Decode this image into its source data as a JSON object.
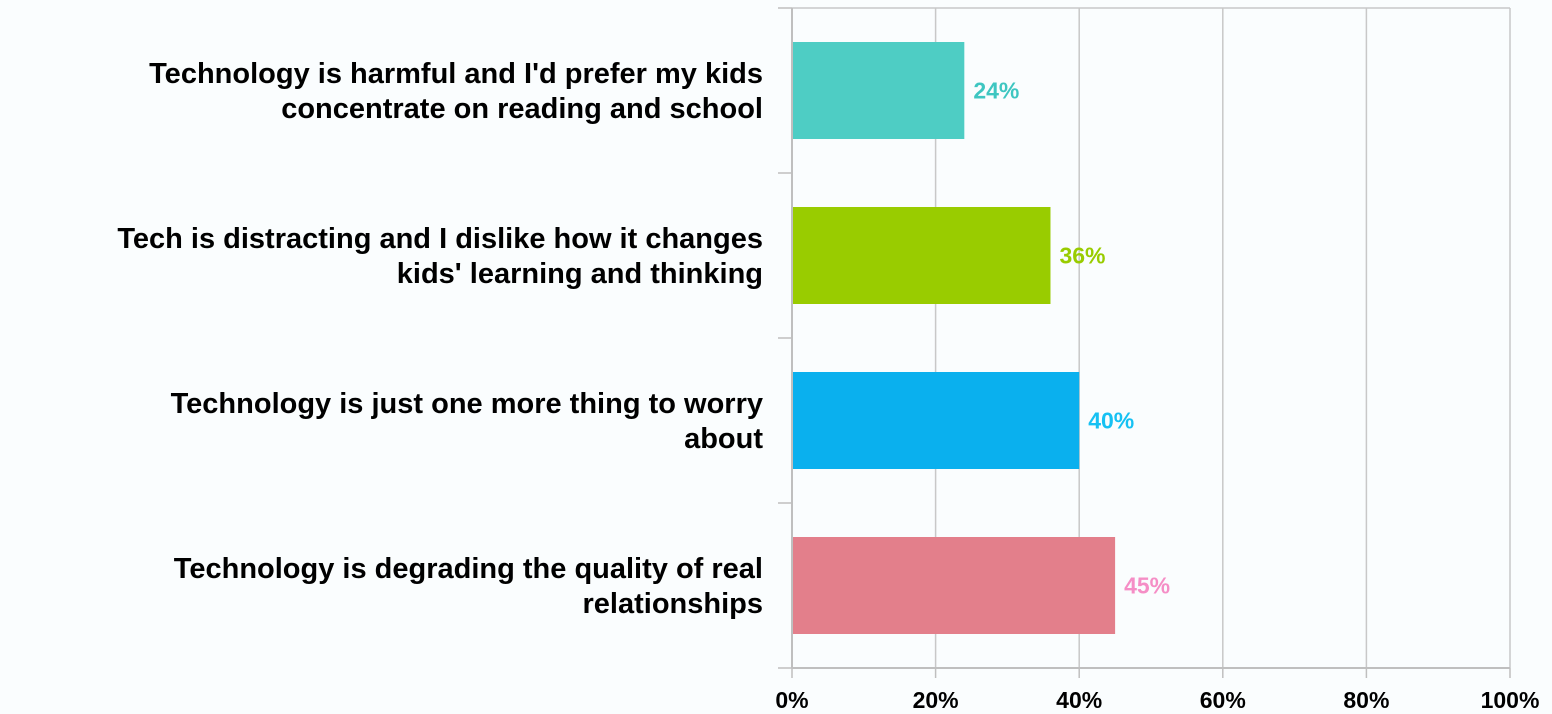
{
  "chart_data": {
    "type": "bar",
    "orientation": "horizontal",
    "categories": [
      [
        "Technology is harmful and I'd prefer my kids",
        "concentrate on reading and school"
      ],
      [
        "Tech is distracting and I dislike how it changes",
        "kids' learning and thinking"
      ],
      [
        "Technology is just one more thing to worry",
        "about"
      ],
      [
        "Technology is degrading the quality of real",
        "relationships"
      ]
    ],
    "values": [
      24,
      36,
      40,
      45
    ],
    "value_labels": [
      "24%",
      "36%",
      "40%",
      "45%"
    ],
    "bar_colors": [
      "#4ecdc4",
      "#99cc00",
      "#0ab0ee",
      "#e37f8b"
    ],
    "label_colors": [
      "#3ec6c1",
      "#99cc00",
      "#16c1f3",
      "#f58ec6"
    ],
    "xlim": [
      0,
      100
    ],
    "x_ticks": [
      0,
      20,
      40,
      60,
      80,
      100
    ],
    "x_tick_labels": [
      "0%",
      "20%",
      "40%",
      "60%",
      "80%",
      "100%"
    ],
    "grid": true,
    "title": "",
    "xlabel": "",
    "ylabel": "",
    "legend": "none"
  }
}
